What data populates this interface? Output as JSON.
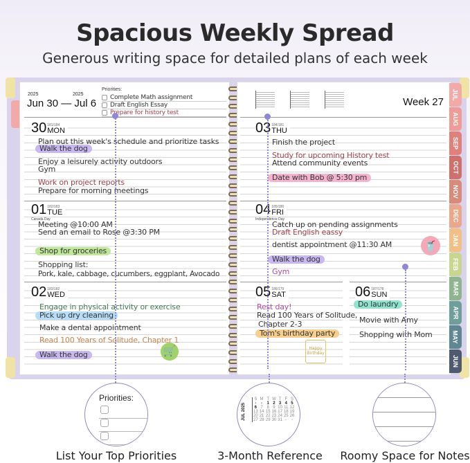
{
  "title": "Spacious Weekly Spread",
  "subtitle": "Generous writing space for detailed plans of each week",
  "header": {
    "year_start": "2025",
    "year_end": "2025",
    "range": "Jun 30 — Jul 6",
    "week": "Week 27"
  },
  "priorities": {
    "label": "Priorities:",
    "items": [
      "Complete Math assignment",
      "Draft English Essay",
      "Prepare for history test"
    ]
  },
  "days": {
    "mon": {
      "num": "30",
      "name": "MON",
      "doy": "181/184",
      "entries": [
        "Plan out this week's schedule and prioritize tasks",
        "Walk the dog",
        "Enjoy a leisurely activity outdoors",
        "Gym",
        "Work on project reports",
        "Prepare for morning meetings"
      ]
    },
    "tue": {
      "num": "01",
      "name": "TUE",
      "doy": "182/183",
      "holiday": "Canada Day",
      "entries": [
        "Meeting @10:00 AM",
        "Send an email to Rose @3:30 PM",
        "Shop for groceries",
        "Shopping list:",
        "Pork, kale, cabbage, cucumbers, eggplant, Avocado"
      ]
    },
    "wed": {
      "num": "02",
      "name": "WED",
      "doy": "183/182",
      "entries": [
        "Engage in physical activity or exercise",
        "Pick up dry cleaning",
        "Make a dental appointment",
        "Read 100 Years of Solitude, Chapter 1",
        "Walk the dog"
      ]
    },
    "thu": {
      "num": "03",
      "name": "THU",
      "doy": "184/181",
      "entries": [
        "Finish the project",
        "Study for upcoming History test",
        "Attend community events",
        "Date with Bob @ 5:30 pm"
      ]
    },
    "fri": {
      "num": "04",
      "name": "FRI",
      "doy": "185/180",
      "holiday": "Independence Day",
      "entries": [
        "Catch up on pending assignments",
        "Draft English eassy",
        "dentist appointment @11:30 AM",
        "Walk the dog",
        "Gym"
      ]
    },
    "sat": {
      "num": "05",
      "name": "SAT",
      "doy": "186/179",
      "entries": [
        "Rest day!",
        "Read 100 Years of Solitude,",
        "Chapter 2-3",
        "Tom's birthday party"
      ]
    },
    "sun": {
      "num": "06",
      "name": "SUN",
      "doy": "187/178",
      "entries": [
        "Do laundry",
        "Movie with Amy",
        "Shopping with Mom"
      ]
    }
  },
  "tabs": [
    {
      "label": "JUL",
      "color": "#f2aaa9"
    },
    {
      "label": "AUG",
      "color": "#ee9c95"
    },
    {
      "label": "SEP",
      "color": "#e0807a"
    },
    {
      "label": "OCT",
      "color": "#cf706b"
    },
    {
      "label": "NOV",
      "color": "#d98b7b"
    },
    {
      "label": "DEC",
      "color": "#eba78b"
    },
    {
      "label": "JAN",
      "color": "#f0c086"
    },
    {
      "label": "FEB",
      "color": "#c9d690"
    },
    {
      "label": "MAR",
      "color": "#8fb590"
    },
    {
      "label": "APR",
      "color": "#6f9f9b"
    },
    {
      "label": "MAY",
      "color": "#5f8693"
    },
    {
      "label": "JUN",
      "color": "#4e5a6f"
    }
  ],
  "icons": {
    "cart": "shopping-cart-icon",
    "cup": "drink-cup-icon",
    "cake": "birthday-cake-icon",
    "cake_text": "Happy Birthday"
  },
  "colors": {
    "accent": "#8f86d6",
    "highlight_purple": "#c9b8f0",
    "highlight_green": "#bfe89a",
    "highlight_blue": "#b7dcf5",
    "highlight_pink": "#f4b3cf",
    "highlight_orange": "#f6cf8f",
    "highlight_teal": "#8fe3cf",
    "ink_red": "#a0404a",
    "ink_green": "#3f7a4f",
    "ink_orange": "#c8804a",
    "ink_magenta": "#b04a9a"
  },
  "features": [
    {
      "caption": "List Your Top Priorities",
      "inner": "Priorities:"
    },
    {
      "caption": "3-Month Reference",
      "month": "JUL 2025"
    },
    {
      "caption": "Roomy Space for Notes"
    }
  ],
  "calendar": {
    "weekdays": [
      "S",
      "M",
      "T",
      "W",
      "T",
      "F",
      "S"
    ],
    "weeks": [
      [
        "-",
        "-",
        "1",
        "2",
        "3",
        "4",
        "5"
      ],
      [
        "6",
        "7",
        "8",
        "9",
        "10",
        "11",
        "12"
      ],
      [
        "13",
        "14",
        "15",
        "16",
        "17",
        "18",
        "19"
      ],
      [
        "20",
        "21",
        "22",
        "23",
        "24",
        "25",
        "26"
      ],
      [
        "27",
        "28",
        "29",
        "30",
        "31",
        "-",
        "-"
      ]
    ]
  }
}
